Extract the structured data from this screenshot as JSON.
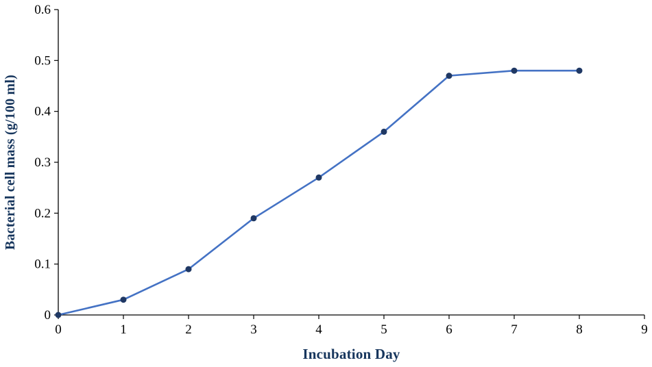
{
  "chart_data": {
    "type": "line",
    "title": "",
    "xlabel": "Incubation Day",
    "ylabel": "Bacterial cell mass (g/100 ml)",
    "x": [
      0,
      1,
      2,
      3,
      4,
      5,
      6,
      7,
      8
    ],
    "series": [
      {
        "name": "Bacterial cell mass",
        "values": [
          0,
          0.03,
          0.09,
          0.19,
          0.27,
          0.36,
          0.47,
          0.48,
          0.48
        ]
      }
    ],
    "xlim": [
      0,
      9
    ],
    "ylim": [
      0,
      0.6
    ],
    "x_ticks": [
      0,
      1,
      2,
      3,
      4,
      5,
      6,
      7,
      8,
      9
    ],
    "y_ticks": [
      0,
      0.1,
      0.2,
      0.3,
      0.4,
      0.5,
      0.6
    ],
    "grid": false,
    "legend": "none",
    "marker": "circle",
    "colors": {
      "line": "#4472C4",
      "marker": "#1F3864",
      "axis": "#000000",
      "tick_label": "#000000",
      "axis_title": "#17365D",
      "background": "#FFFFFF"
    }
  }
}
